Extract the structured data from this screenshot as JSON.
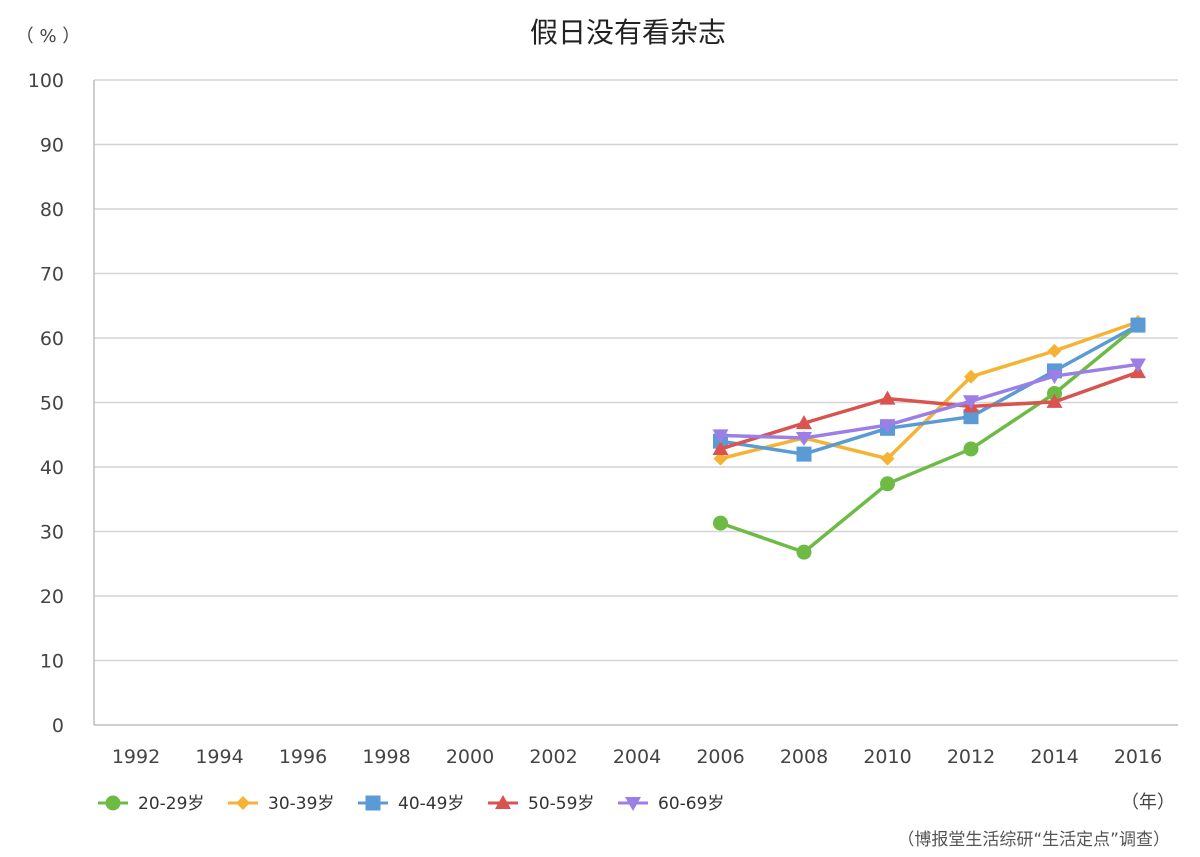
{
  "chart_data": {
    "type": "line",
    "title": "假日没有看杂志",
    "ylabel": "（ % ）",
    "xlabel": "（年）",
    "source": "（博报堂生活综研“生活定点”调查）",
    "categories": [
      "1992",
      "1994",
      "1996",
      "1998",
      "2000",
      "2002",
      "2004",
      "2006",
      "2008",
      "2010",
      "2012",
      "2014",
      "2016"
    ],
    "ylim": [
      0,
      100
    ],
    "yticks": [
      0,
      10,
      20,
      30,
      40,
      50,
      60,
      70,
      80,
      90,
      100
    ],
    "grid": true,
    "legend_position": "bottom-left",
    "series": [
      {
        "name": "20-29岁",
        "color": "#6dbb45",
        "marker": "circle",
        "values": [
          null,
          null,
          null,
          null,
          null,
          null,
          null,
          31.3,
          26.8,
          37.4,
          42.8,
          51.4,
          62.0
        ]
      },
      {
        "name": "30-39岁",
        "color": "#f5b335",
        "marker": "diamond",
        "values": [
          null,
          null,
          null,
          null,
          null,
          null,
          null,
          41.3,
          44.5,
          41.3,
          54.0,
          58.0,
          62.5
        ]
      },
      {
        "name": "40-49岁",
        "color": "#5b9bd5",
        "marker": "square",
        "values": [
          null,
          null,
          null,
          null,
          null,
          null,
          null,
          44.0,
          42.0,
          46.0,
          47.8,
          54.9,
          62.0
        ]
      },
      {
        "name": "50-59岁",
        "color": "#d9534f",
        "marker": "triangle",
        "values": [
          null,
          null,
          null,
          null,
          null,
          null,
          null,
          42.8,
          46.8,
          50.6,
          49.4,
          50.1,
          54.7
        ]
      },
      {
        "name": "60-69岁",
        "color": "#9b7fe6",
        "marker": "triangle-down",
        "values": [
          null,
          null,
          null,
          null,
          null,
          null,
          null,
          44.9,
          44.5,
          46.5,
          50.2,
          54.1,
          55.9
        ]
      }
    ]
  }
}
